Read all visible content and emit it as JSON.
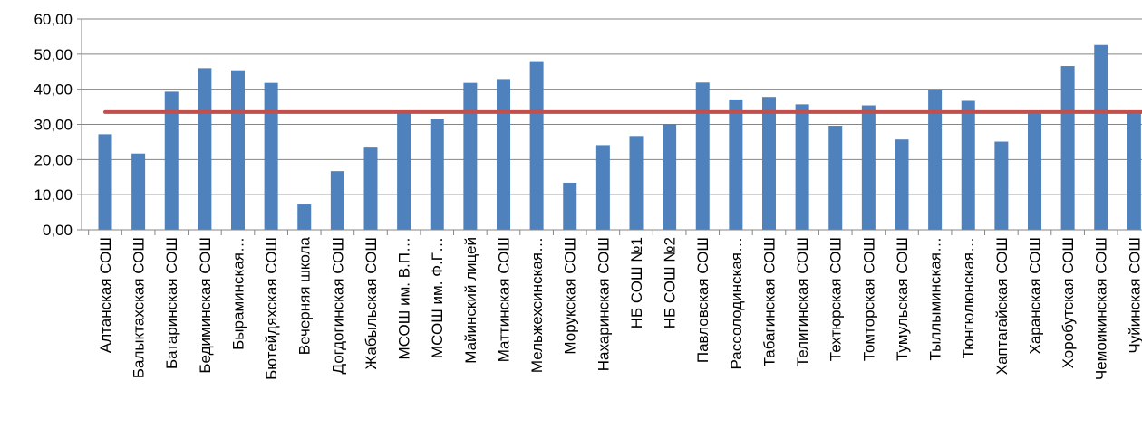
{
  "chart_data": {
    "type": "bar",
    "title": "",
    "xlabel": "",
    "ylabel": "",
    "ylim": [
      0,
      60
    ],
    "yticks": [
      "0,00",
      "10,00",
      "20,00",
      "30,00",
      "40,00",
      "50,00",
      "60,00"
    ],
    "grid": "horizontal",
    "legend": "none",
    "categories": [
      "Алтанская СОШ",
      "Балыктахская СОШ",
      "Батаринская СОШ",
      "Бедиминская СОШ",
      "Быраминская…",
      "Бютейдяхская СОШ",
      "Вечерняя школа",
      "Догдогинская СОШ",
      "Жабыльская СОШ",
      "МСОШ им. В.П…",
      "МСОШ им. Ф.Г…",
      "Майинский лицей",
      "Маттинская СОШ",
      "Мельжехсинская…",
      "Морукская СОШ",
      "Нахаринская СОШ",
      "НБ СОШ №1",
      "НБ СОШ №2",
      "Павловская СОШ",
      "Рассолодинская…",
      "Табагинская СОШ",
      "Телигинская СОШ",
      "Техтюрская СОШ",
      "Томторская СОШ",
      "Тумульская СОШ",
      "Тыллыминская…",
      "Тюнгюлюнская…",
      "Хаптагайская СОШ",
      "Харанская СОШ",
      "Хоробутская СОШ",
      "Чемоикинская СОШ",
      "Чуйинская СОШ"
    ],
    "series": [
      {
        "type": "bar",
        "color": "#4f81bd",
        "values": [
          27.2,
          21.7,
          39.3,
          46.0,
          45.4,
          41.8,
          7.2,
          16.7,
          23.4,
          33.6,
          31.6,
          41.8,
          42.9,
          48.0,
          13.4,
          24.1,
          26.7,
          30.1,
          41.9,
          37.1,
          37.8,
          35.7,
          29.6,
          35.4,
          25.7,
          39.7,
          36.7,
          25.1,
          33.6,
          46.6,
          52.6,
          33.5
        ]
      },
      {
        "type": "line",
        "color": "#c0504d",
        "value": 33.5
      }
    ]
  }
}
